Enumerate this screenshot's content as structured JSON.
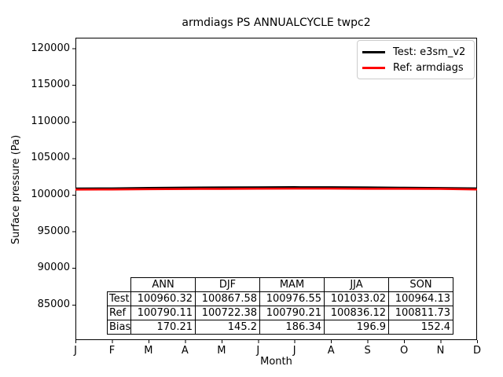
{
  "chart_data": {
    "type": "line",
    "title": "armdiags PS ANNUALCYCLE twpc2",
    "xlabel": "Month",
    "ylabel": "Surface pressure (Pa)",
    "x_tick_labels": [
      "J",
      "F",
      "M",
      "A",
      "M",
      "J",
      "J",
      "A",
      "S",
      "O",
      "N",
      "D"
    ],
    "y_ticks": [
      85000,
      90000,
      95000,
      100000,
      105000,
      110000,
      115000,
      120000
    ],
    "ylim": [
      80150,
      121460
    ],
    "grid": false,
    "legend_position": "upper right",
    "series": [
      {
        "name": "Test: e3sm_v2",
        "color": "#000000",
        "values": [
          100860,
          100868,
          100940,
          100985,
          101005,
          101025,
          101040,
          101034,
          101000,
          100965,
          100927,
          100875
        ]
      },
      {
        "name": "Ref: armdiags",
        "color": "#ff0000",
        "values": [
          100715,
          100727,
          100770,
          100792,
          100808,
          100828,
          100840,
          100840,
          100824,
          100812,
          100799,
          100725
        ]
      }
    ]
  },
  "table": {
    "col_headers": [
      "ANN",
      "DJF",
      "MAM",
      "JJA",
      "SON"
    ],
    "rows": [
      {
        "label": "Test",
        "values": [
          "100960.32",
          "100867.58",
          "100976.55",
          "101033.02",
          "100964.13"
        ]
      },
      {
        "label": "Ref",
        "values": [
          "100790.11",
          "100722.38",
          "100790.21",
          "100836.12",
          "100811.73"
        ]
      },
      {
        "label": "Bias",
        "values": [
          "170.21",
          "145.2",
          "186.34",
          "196.9",
          "152.4"
        ]
      }
    ]
  }
}
